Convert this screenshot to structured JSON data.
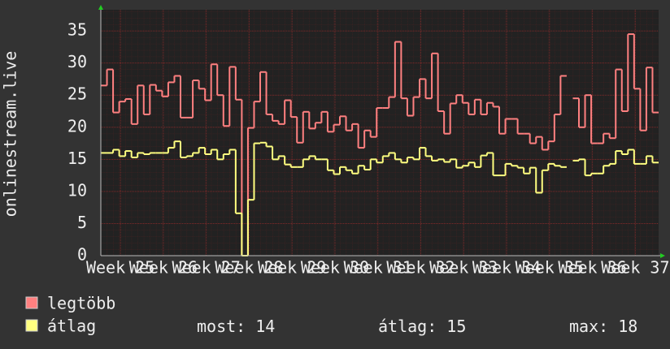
{
  "chart_data": {
    "type": "line",
    "step": true,
    "y_label": "onlinestream.live",
    "x": [
      0,
      1,
      2,
      3,
      4,
      5,
      6,
      7,
      8,
      9,
      10,
      11,
      12,
      13,
      14,
      15,
      16,
      17,
      18,
      19,
      20,
      21,
      22,
      23,
      24,
      25,
      26,
      27,
      28,
      29,
      30,
      31,
      32,
      33,
      34,
      35,
      36,
      37,
      38,
      39,
      40,
      41,
      42,
      43,
      44,
      45,
      46,
      47,
      48,
      49,
      50,
      51,
      52,
      53,
      54,
      55,
      56,
      57,
      58,
      59,
      60,
      61,
      62,
      63,
      64,
      65,
      66,
      67,
      68,
      69,
      70,
      71,
      72,
      73,
      74,
      75,
      76,
      77,
      78,
      79,
      80,
      81,
      82,
      83,
      84,
      85,
      86,
      87,
      88,
      89,
      90
    ],
    "xlim": [
      0,
      91
    ],
    "xticks": [
      {
        "value": 3.2,
        "label": "Week 25"
      },
      {
        "value": 10.2,
        "label": "Week 26"
      },
      {
        "value": 17.2,
        "label": "Week 27"
      },
      {
        "value": 24.2,
        "label": "Week 28"
      },
      {
        "value": 31.2,
        "label": "Week 29"
      },
      {
        "value": 38.2,
        "label": "Week 30"
      },
      {
        "value": 45.2,
        "label": "Week 31"
      },
      {
        "value": 52.2,
        "label": "Week 32"
      },
      {
        "value": 59.2,
        "label": "Week 33"
      },
      {
        "value": 66.2,
        "label": "Week 34"
      },
      {
        "value": 73.2,
        "label": "Week 35"
      },
      {
        "value": 80.2,
        "label": "Week 36"
      },
      {
        "value": 87.2,
        "label": "Week 37"
      }
    ],
    "ylim": [
      0,
      38.3
    ],
    "yticks": [
      0,
      5,
      10,
      15,
      20,
      25,
      30,
      35
    ],
    "grid": true,
    "series": [
      {
        "name": "legtöbb",
        "color": "#ff8080",
        "values": [
          26.5,
          29,
          22.3,
          24,
          24.4,
          20.5,
          26.5,
          22,
          26.6,
          25.7,
          24.8,
          27,
          28,
          21.5,
          21.5,
          27.3,
          26,
          24.2,
          29.8,
          25,
          20.2,
          29.4,
          24.3,
          0,
          19.9,
          24,
          28.6,
          22,
          21,
          20.5,
          24.2,
          21.6,
          17.6,
          22.4,
          19.8,
          20.7,
          22.4,
          19.3,
          20.4,
          21.7,
          19.5,
          20.5,
          16.8,
          19.5,
          18.5,
          23,
          23,
          24.7,
          33.3,
          24.5,
          21.8,
          24.7,
          27.5,
          24.5,
          31.5,
          22.5,
          19,
          23.7,
          25,
          23.8,
          22,
          24.3,
          22,
          23.8,
          23.2,
          19,
          21.3,
          21.3,
          19,
          19,
          17.5,
          18.5,
          16.5,
          17.8,
          22,
          28,
          null,
          24.5,
          20,
          25,
          17.5,
          17.5,
          19,
          18.3,
          29,
          22.5,
          34.5,
          26,
          19.5,
          29.3,
          22.3
        ]
      },
      {
        "name": "átlag",
        "color": "#ffff80",
        "values": [
          16,
          16,
          16.5,
          15.5,
          16.3,
          15.3,
          16,
          15.8,
          16,
          16,
          16,
          16.8,
          17.8,
          15.3,
          15.5,
          16,
          16.8,
          15.8,
          16.5,
          15,
          15.8,
          16.5,
          6.6,
          0,
          8.7,
          17.5,
          17.6,
          17,
          15,
          15.5,
          14.2,
          13.8,
          13.8,
          15,
          15.5,
          15,
          15,
          13.3,
          12.7,
          13.8,
          13.3,
          12.8,
          14,
          13.4,
          15,
          14.5,
          15.5,
          16,
          15,
          14.5,
          15.3,
          15,
          16.8,
          15.5,
          14.8,
          15,
          14.6,
          15,
          13.7,
          14,
          14.5,
          13.8,
          15.6,
          16,
          12.5,
          12.5,
          14.3,
          14,
          13.7,
          12.8,
          13.7,
          9.8,
          13.3,
          14.3,
          14,
          13.8,
          null,
          14.8,
          15,
          12.5,
          12.8,
          12.8,
          14,
          14.3,
          16.3,
          15.8,
          16.5,
          14.3,
          14.3,
          15.5,
          14.5
        ]
      }
    ],
    "stats": [
      {
        "label": "most:",
        "value": 14
      },
      {
        "label": "átlag:",
        "value": 15
      },
      {
        "label": "max:",
        "value": 18
      }
    ]
  }
}
